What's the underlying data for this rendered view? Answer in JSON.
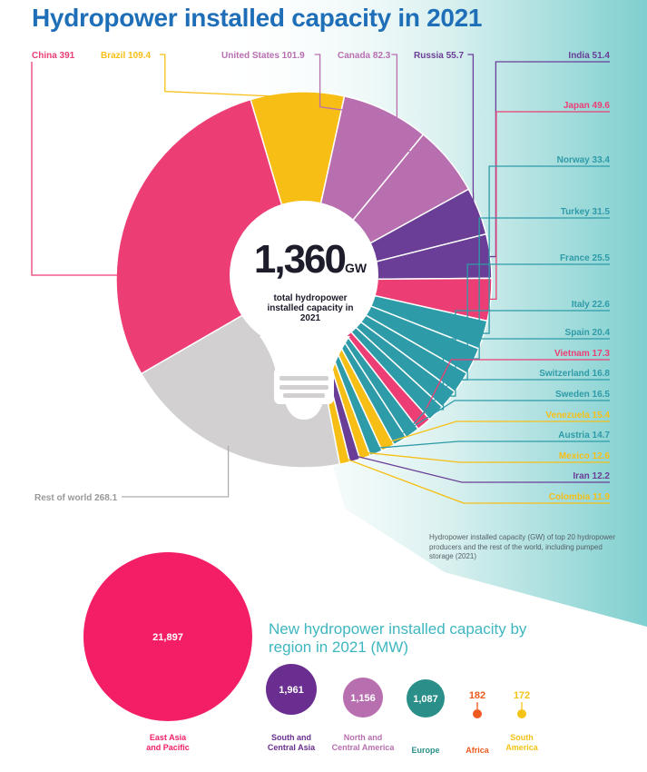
{
  "title": "Hydropower installed capacity in 2021",
  "center": {
    "value": "1,360",
    "unit": "GW",
    "description": "total hydropower installed capacity in 2021"
  },
  "note": "Hydropower installed capacity (GW) of top 20 hydropower producers and the rest of the world, including pumped storage (2021)",
  "colors": {
    "title": "#1f6fb8",
    "pink": "#ec3e74",
    "yellow": "#f7bf15",
    "mauve": "#b86fb0",
    "purple": "#6a3e96",
    "teal": "#2e9ba8",
    "grey": "#d2d0d0",
    "orange": "#ee5a1f",
    "gold": "#f5c316",
    "green_teal": "#2b8f89"
  },
  "chart_data": [
    {
      "type": "pie",
      "title": "Hydropower installed capacity in 2021",
      "unit": "GW",
      "total_label": "1,360",
      "slices": [
        {
          "name": "China",
          "value": 391,
          "label": "China 391",
          "color": "#ec3e74"
        },
        {
          "name": "Brazil",
          "value": 109.4,
          "label": "Brazil 109.4",
          "color": "#f7bf15"
        },
        {
          "name": "United States",
          "value": 101.9,
          "label": "United States 101.9",
          "color": "#b86fb0"
        },
        {
          "name": "Canada",
          "value": 82.3,
          "label": "Canada 82.3",
          "color": "#b86fb0"
        },
        {
          "name": "Russia",
          "value": 55.7,
          "label": "Russia 55.7",
          "color": "#6a3e96"
        },
        {
          "name": "India",
          "value": 51.4,
          "label": "India 51.4",
          "color": "#6a3e96"
        },
        {
          "name": "Japan",
          "value": 49.6,
          "label": "Japan 49.6",
          "color": "#ec3e74"
        },
        {
          "name": "Norway",
          "value": 33.4,
          "label": "Norway 33.4",
          "color": "#2e9ba8"
        },
        {
          "name": "Turkey",
          "value": 31.5,
          "label": "Turkey  31.5",
          "color": "#2e9ba8"
        },
        {
          "name": "France",
          "value": 25.5,
          "label": "France 25.5",
          "color": "#2e9ba8"
        },
        {
          "name": "Italy",
          "value": 22.6,
          "label": "Italy 22.6",
          "color": "#2e9ba8"
        },
        {
          "name": "Spain",
          "value": 20.4,
          "label": "Spain 20.4",
          "color": "#2e9ba8"
        },
        {
          "name": "Vietnam",
          "value": 17.3,
          "label": "Vietnam 17.3",
          "color": "#ec3e74"
        },
        {
          "name": "Switzerland",
          "value": 16.8,
          "label": "Switzerland 16.8",
          "color": "#2e9ba8"
        },
        {
          "name": "Sweden",
          "value": 16.5,
          "label": "Sweden 16.5",
          "color": "#2e9ba8"
        },
        {
          "name": "Venezuela",
          "value": 15.4,
          "label": "Venezuela 15.4",
          "color": "#f7bf15"
        },
        {
          "name": "Austria",
          "value": 14.7,
          "label": "Austria 14.7",
          "color": "#2e9ba8"
        },
        {
          "name": "Mexico",
          "value": 12.6,
          "label": "Mexico 12.6",
          "color": "#f7bf15"
        },
        {
          "name": "Iran",
          "value": 12.2,
          "label": "Iran 12.2",
          "color": "#6a3e96"
        },
        {
          "name": "Colombia",
          "value": 11.9,
          "label": "Colombia 11.9",
          "color": "#f7bf15"
        },
        {
          "name": "Rest of world",
          "value": 268.1,
          "label": "Rest of world 268.1",
          "color": "#d2d0d0"
        }
      ]
    },
    {
      "type": "bubble",
      "title": "New hydropower installed capacity by region in 2021 (MW)",
      "unit": "MW",
      "points": [
        {
          "category": "East Asia and Pacific",
          "value": 21897,
          "label": "21,897",
          "color": "#f41e67"
        },
        {
          "category": "South and Central Asia",
          "value": 1961,
          "label": "1,961",
          "color": "#6a2e91"
        },
        {
          "category": "North and Central America",
          "value": 1156,
          "label": "1,156",
          "color": "#b86fb0"
        },
        {
          "category": "Europe",
          "value": 1087,
          "label": "1,087",
          "color": "#2b8f89"
        },
        {
          "category": "Africa",
          "value": 182,
          "label": "182",
          "color": "#ee5a1f"
        },
        {
          "category": "South America",
          "value": 172,
          "label": "172",
          "color": "#f5c316"
        }
      ]
    }
  ]
}
